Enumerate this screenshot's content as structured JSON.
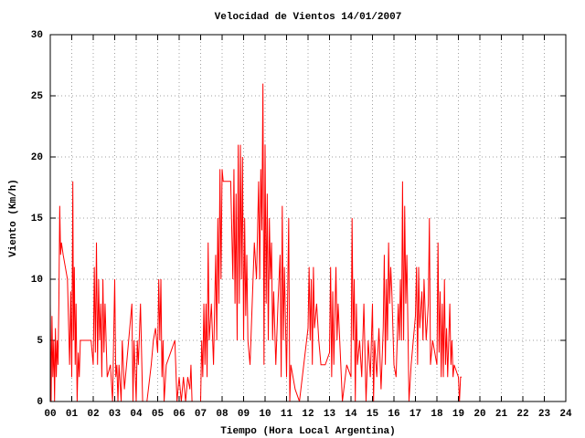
{
  "chart_data": {
    "type": "line",
    "title": "Velocidad de Vientos 14/01/2007",
    "x_label": "Tiempo (Hora Local Argentina)",
    "y_label": "Viento (Km/h)",
    "color": "#ff0000",
    "grid": true,
    "xlim": [
      0,
      24
    ],
    "ylim": [
      0,
      30
    ],
    "xticks": [
      {
        "value": 0,
        "label": "00"
      },
      {
        "value": 1,
        "label": "01"
      },
      {
        "value": 2,
        "label": "02"
      },
      {
        "value": 3,
        "label": "03"
      },
      {
        "value": 4,
        "label": "04"
      },
      {
        "value": 5,
        "label": "05"
      },
      {
        "value": 6,
        "label": "06"
      },
      {
        "value": 7,
        "label": "07"
      },
      {
        "value": 8,
        "label": "08"
      },
      {
        "value": 9,
        "label": "09"
      },
      10,
      11,
      12,
      13,
      14,
      15,
      16,
      17,
      18,
      19,
      20,
      21,
      22,
      23,
      24
    ],
    "yticks": [
      0,
      5,
      10,
      15,
      20,
      25,
      30
    ],
    "x": [
      0.0,
      0.04,
      0.08,
      0.12,
      0.16,
      0.2,
      0.24,
      0.28,
      0.32,
      0.36,
      0.4,
      0.44,
      0.48,
      0.52,
      0.6,
      0.7,
      0.8,
      0.9,
      0.95,
      1.0,
      1.05,
      1.08,
      1.12,
      1.16,
      1.2,
      1.25,
      1.3,
      1.35,
      1.4,
      1.6,
      1.8,
      1.9,
      2.0,
      2.05,
      2.1,
      2.15,
      2.2,
      2.25,
      2.3,
      2.35,
      2.4,
      2.45,
      2.5,
      2.55,
      2.65,
      2.8,
      2.9,
      3.0,
      3.05,
      3.1,
      3.15,
      3.2,
      3.3,
      3.35,
      3.45,
      3.6,
      3.8,
      3.85,
      3.9,
      4.0,
      4.05,
      4.1,
      4.2,
      4.3,
      4.5,
      4.7,
      4.8,
      4.9,
      5.0,
      5.05,
      5.1,
      5.15,
      5.2,
      5.25,
      5.3,
      5.4,
      5.6,
      5.8,
      5.9,
      6.0,
      6.1,
      6.2,
      6.3,
      6.4,
      6.5,
      6.55,
      6.6,
      6.8,
      7.0,
      7.05,
      7.1,
      7.15,
      7.2,
      7.25,
      7.3,
      7.35,
      7.4,
      7.5,
      7.6,
      7.7,
      7.75,
      7.8,
      7.85,
      7.9,
      7.95,
      8.0,
      8.05,
      8.4,
      8.5,
      8.55,
      8.6,
      8.65,
      8.7,
      8.75,
      8.8,
      8.85,
      8.9,
      8.95,
      9.0,
      9.05,
      9.1,
      9.15,
      9.2,
      9.3,
      9.4,
      9.5,
      9.6,
      9.7,
      9.75,
      9.8,
      9.85,
      9.9,
      9.95,
      10.0,
      10.05,
      10.1,
      10.15,
      10.2,
      10.25,
      10.3,
      10.35,
      10.4,
      10.5,
      10.6,
      10.7,
      10.75,
      10.8,
      10.85,
      10.9,
      11.0,
      11.1,
      11.15,
      11.2,
      11.4,
      11.6,
      11.8,
      12.0,
      12.05,
      12.1,
      12.15,
      12.2,
      12.25,
      12.3,
      12.4,
      12.5,
      12.6,
      12.8,
      13.0,
      13.05,
      13.1,
      13.15,
      13.2,
      13.3,
      13.35,
      13.4,
      13.5,
      13.6,
      13.8,
      14.0,
      14.05,
      14.1,
      14.15,
      14.2,
      14.25,
      14.3,
      14.4,
      14.5,
      14.6,
      14.7,
      14.8,
      14.9,
      15.0,
      15.05,
      15.1,
      15.2,
      15.3,
      15.4,
      15.5,
      15.55,
      15.6,
      15.65,
      15.7,
      15.75,
      15.8,
      15.85,
      15.9,
      16.0,
      16.1,
      16.2,
      16.25,
      16.3,
      16.35,
      16.4,
      16.45,
      16.5,
      16.55,
      16.6,
      16.7,
      16.8,
      17.0,
      17.05,
      17.1,
      17.15,
      17.2,
      17.3,
      17.35,
      17.4,
      17.5,
      17.6,
      17.65,
      17.7,
      17.8,
      18.0,
      18.05,
      18.1,
      18.15,
      18.2,
      18.25,
      18.3,
      18.35,
      18.4,
      18.45,
      18.5,
      18.6,
      18.65,
      18.7,
      18.75,
      18.8,
      19.0,
      19.05,
      19.1,
      19.15
    ],
    "values": [
      8,
      0,
      7,
      2,
      5,
      0,
      6,
      2,
      5,
      3,
      8,
      16,
      12,
      13,
      12,
      11,
      10,
      3,
      9,
      2,
      18,
      5,
      11,
      3,
      8,
      0,
      4,
      2,
      5,
      5,
      5,
      5,
      3,
      11,
      4,
      13,
      3,
      10,
      5,
      8,
      2,
      10,
      4,
      8,
      2,
      3,
      0,
      10,
      2,
      3,
      0,
      3,
      0,
      5,
      1,
      4,
      8,
      0,
      5,
      0,
      5,
      3,
      8,
      0,
      0,
      3,
      5,
      6,
      4,
      10,
      5,
      10,
      2,
      5,
      0,
      3,
      4,
      5,
      0,
      2,
      0,
      2,
      0,
      2,
      1,
      3,
      0,
      0,
      0,
      5,
      2,
      8,
      3,
      8,
      2,
      13,
      5,
      8,
      3,
      12,
      5,
      15,
      8,
      19,
      10,
      19,
      18,
      18,
      10,
      19,
      8,
      17,
      5,
      21,
      8,
      21,
      10,
      20,
      5,
      15,
      7,
      12,
      5,
      3,
      8,
      13,
      10,
      18,
      10,
      19,
      14,
      26,
      3,
      21,
      8,
      17,
      5,
      15,
      10,
      13,
      5,
      9,
      3,
      8,
      12,
      2,
      16,
      5,
      11,
      2,
      15,
      0,
      3,
      1,
      0,
      3,
      6,
      11,
      5,
      10,
      3,
      11,
      6,
      8,
      5,
      3,
      3,
      4,
      11,
      2,
      9,
      3,
      11,
      5,
      8,
      4,
      0,
      3,
      2,
      15,
      5,
      10,
      0,
      8,
      3,
      5,
      2,
      8,
      0,
      5,
      2,
      8,
      0,
      5,
      2,
      6,
      1,
      6,
      12,
      3,
      10,
      5,
      13,
      8,
      11,
      9,
      3,
      2,
      8,
      5,
      10,
      5,
      18,
      5,
      16,
      8,
      12,
      0,
      3,
      7,
      11,
      3,
      11,
      6,
      9,
      5,
      10,
      5,
      8,
      15,
      3,
      5,
      3,
      13,
      4,
      9,
      2,
      8,
      2,
      10,
      3,
      6,
      2,
      8,
      3,
      5,
      2,
      3,
      2,
      0,
      2,
      2
    ]
  }
}
